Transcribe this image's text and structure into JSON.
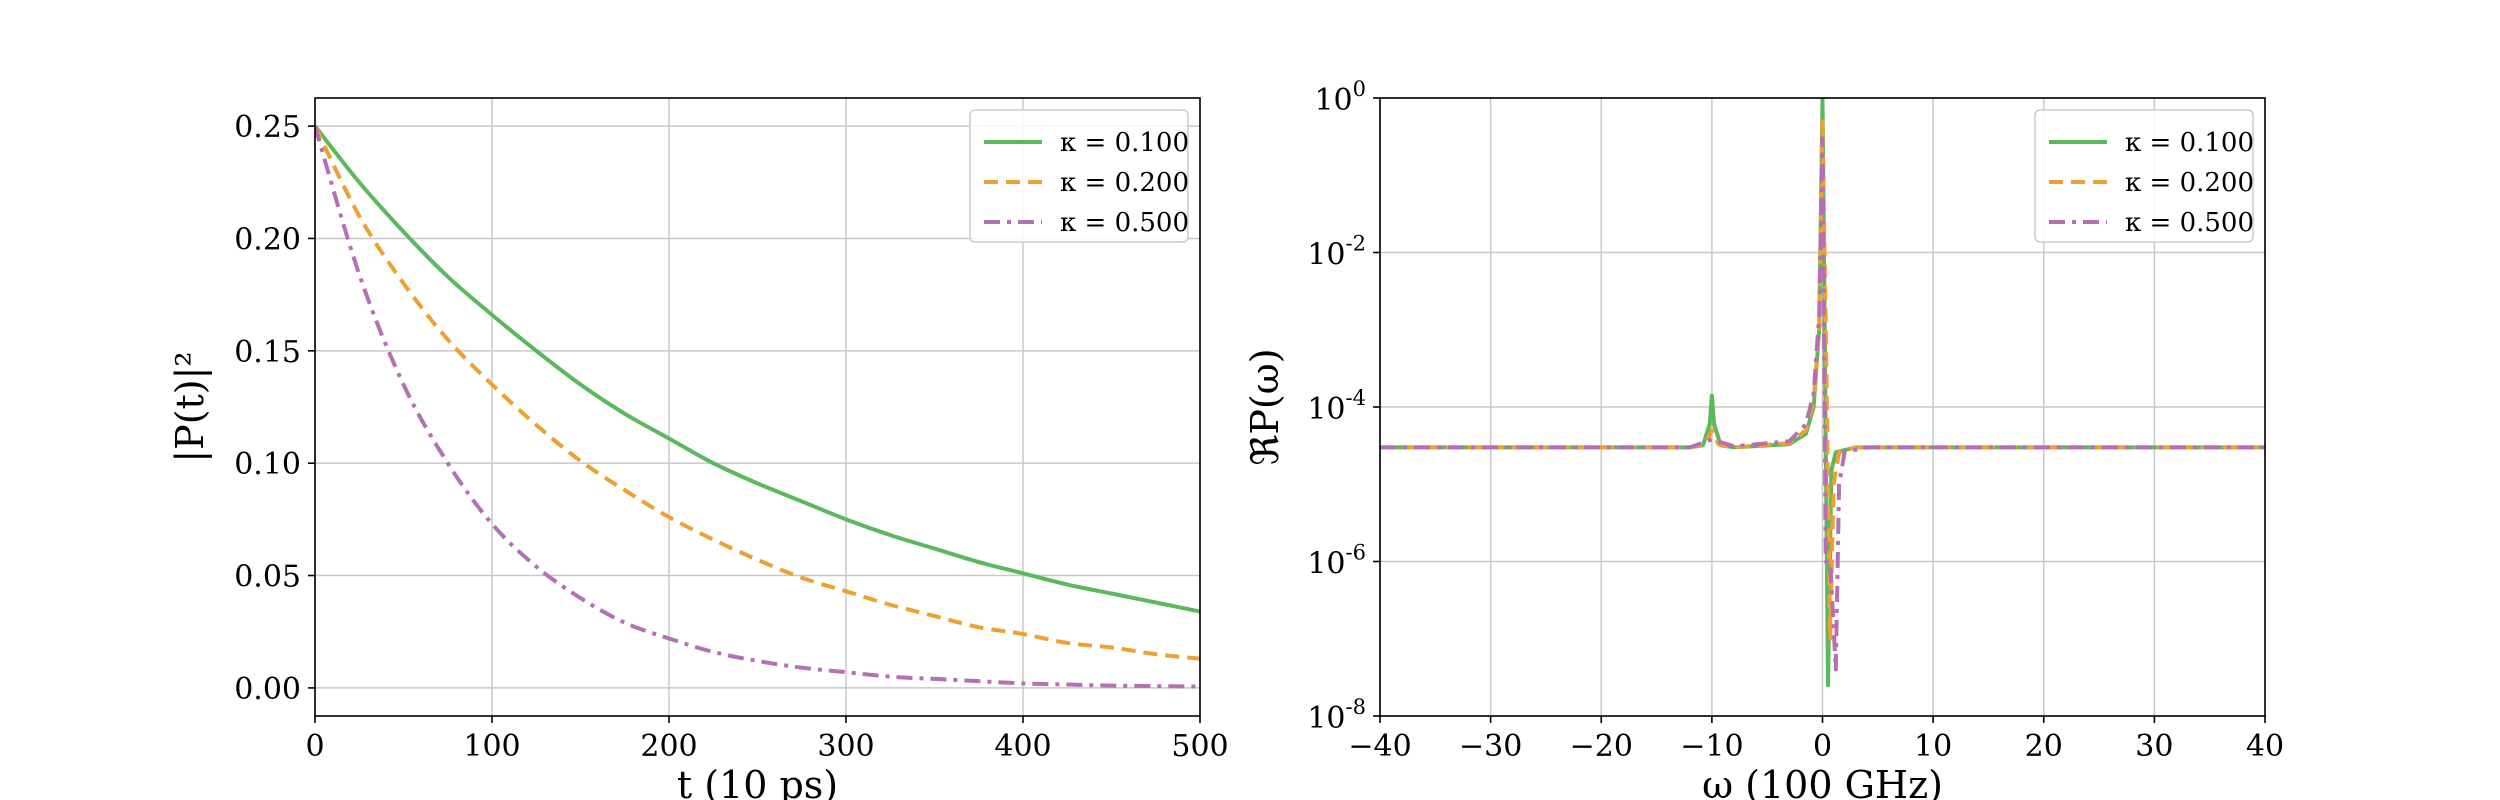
{
  "chart_data": [
    {
      "type": "line",
      "xlabel": "t (10 ps)",
      "ylabel": "|P(t)|²",
      "xlim": [
        0,
        500
      ],
      "ylim": [
        -0.0125,
        0.2625
      ],
      "xticks": [
        0,
        100,
        200,
        300,
        400,
        500
      ],
      "xtick_labels": [
        "0",
        "100",
        "200",
        "300",
        "400",
        "500"
      ],
      "yticks": [
        0.0,
        0.05,
        0.1,
        0.15,
        0.2,
        0.25
      ],
      "ytick_labels": [
        "0.00",
        "0.05",
        "0.10",
        "0.15",
        "0.20",
        "0.25"
      ],
      "grid": true,
      "legend_position": "top-right",
      "x": [
        0,
        25,
        50,
        75,
        100,
        125,
        150,
        175,
        200,
        225,
        250,
        275,
        300,
        325,
        350,
        375,
        400,
        425,
        450,
        475,
        500
      ],
      "series": [
        {
          "name": "κ = 0.100",
          "color": "#5cb85c",
          "dash": "solid",
          "values": [
            0.25,
            0.225,
            0.203,
            0.183,
            0.166,
            0.15,
            0.135,
            0.122,
            0.111,
            0.1,
            0.091,
            0.083,
            0.075,
            0.068,
            0.062,
            0.056,
            0.051,
            0.046,
            0.042,
            0.038,
            0.034
          ]
        },
        {
          "name": "κ = 0.200",
          "color": "#f0a030",
          "dash": "dashed",
          "values": [
            0.25,
            0.21,
            0.18,
            0.155,
            0.135,
            0.117,
            0.101,
            0.088,
            0.076,
            0.066,
            0.057,
            0.049,
            0.043,
            0.037,
            0.032,
            0.027,
            0.024,
            0.02,
            0.018,
            0.015,
            0.013
          ]
        },
        {
          "name": "κ = 0.500",
          "color": "#b570b5",
          "dash": "dashdot",
          "values": [
            0.25,
            0.184,
            0.135,
            0.1,
            0.073,
            0.054,
            0.04,
            0.029,
            0.022,
            0.016,
            0.012,
            0.009,
            0.007,
            0.005,
            0.004,
            0.003,
            0.002,
            0.0015,
            0.001,
            0.0008,
            0.0006
          ]
        }
      ]
    },
    {
      "type": "line",
      "xlabel": "ω (100 GHz)",
      "ylabel": "ℜP(ω)",
      "xlim": [
        -40,
        40
      ],
      "ylim_log10": [
        -8,
        0
      ],
      "yscale": "log",
      "xticks": [
        -40,
        -30,
        -20,
        -10,
        0,
        10,
        20,
        30,
        40
      ],
      "xtick_labels": [
        "−40",
        "−30",
        "−20",
        "−10",
        "0",
        "10",
        "20",
        "30",
        "40"
      ],
      "yticks_log10": [
        -8,
        -6,
        -4,
        -2,
        0
      ],
      "ytick_bases": [
        "10",
        "10",
        "10",
        "10",
        "10"
      ],
      "ytick_exponents": [
        "-8",
        "-6",
        "-4",
        "-2",
        "0"
      ],
      "grid": true,
      "legend_position": "top-right",
      "series": [
        {
          "name": "κ = 0.100",
          "color": "#5cb85c",
          "dash": "solid",
          "points": [
            [
              -40,
              3e-05
            ],
            [
              -12,
              3e-05
            ],
            [
              -10.8,
              3.2e-05
            ],
            [
              -10.2,
              6e-05
            ],
            [
              -10,
              0.00014
            ],
            [
              -9.8,
              6e-05
            ],
            [
              -9.2,
              3.2e-05
            ],
            [
              -8,
              3e-05
            ],
            [
              -3,
              3.3e-05
            ],
            [
              -1.5,
              4.5e-05
            ],
            [
              -0.8,
              0.0001
            ],
            [
              -0.3,
              0.001
            ],
            [
              0,
              1.0
            ],
            [
              0.2,
              0.001
            ],
            [
              0.5,
              2.5e-08
            ],
            [
              0.8,
              1.5e-05
            ],
            [
              1.2,
              2.6e-05
            ],
            [
              3,
              3e-05
            ],
            [
              40,
              3e-05
            ]
          ]
        },
        {
          "name": "κ = 0.200",
          "color": "#f0a030",
          "dash": "dashed",
          "points": [
            [
              -40,
              3e-05
            ],
            [
              -12,
              3e-05
            ],
            [
              -10.6,
              3.3e-05
            ],
            [
              -10,
              5e-05
            ],
            [
              -9.4,
              3.3e-05
            ],
            [
              -8,
              3e-05
            ],
            [
              -3,
              3.4e-05
            ],
            [
              -1.5,
              5e-05
            ],
            [
              -0.8,
              0.00012
            ],
            [
              -0.3,
              0.001
            ],
            [
              0,
              0.5
            ],
            [
              0.3,
              0.001
            ],
            [
              0.7,
              1e-07
            ],
            [
              1,
              1e-05
            ],
            [
              1.5,
              2.6e-05
            ],
            [
              3,
              3e-05
            ],
            [
              40,
              3e-05
            ]
          ]
        },
        {
          "name": "κ = 0.500",
          "color": "#b570b5",
          "dash": "dashdot",
          "points": [
            [
              -40,
              3e-05
            ],
            [
              -12,
              3e-05
            ],
            [
              -10,
              3.8e-05
            ],
            [
              -8,
              3.1e-05
            ],
            [
              -3,
              3.6e-05
            ],
            [
              -1.5,
              6e-05
            ],
            [
              -0.8,
              0.00015
            ],
            [
              -0.3,
              0.0015
            ],
            [
              0,
              0.3
            ],
            [
              0.3,
              1e-06
            ],
            [
              0.7,
              1e-06
            ],
            [
              1.2,
              4e-08
            ],
            [
              1.5,
              1e-05
            ],
            [
              2,
              2.6e-05
            ],
            [
              4,
              3e-05
            ],
            [
              40,
              3e-05
            ]
          ]
        }
      ]
    }
  ]
}
